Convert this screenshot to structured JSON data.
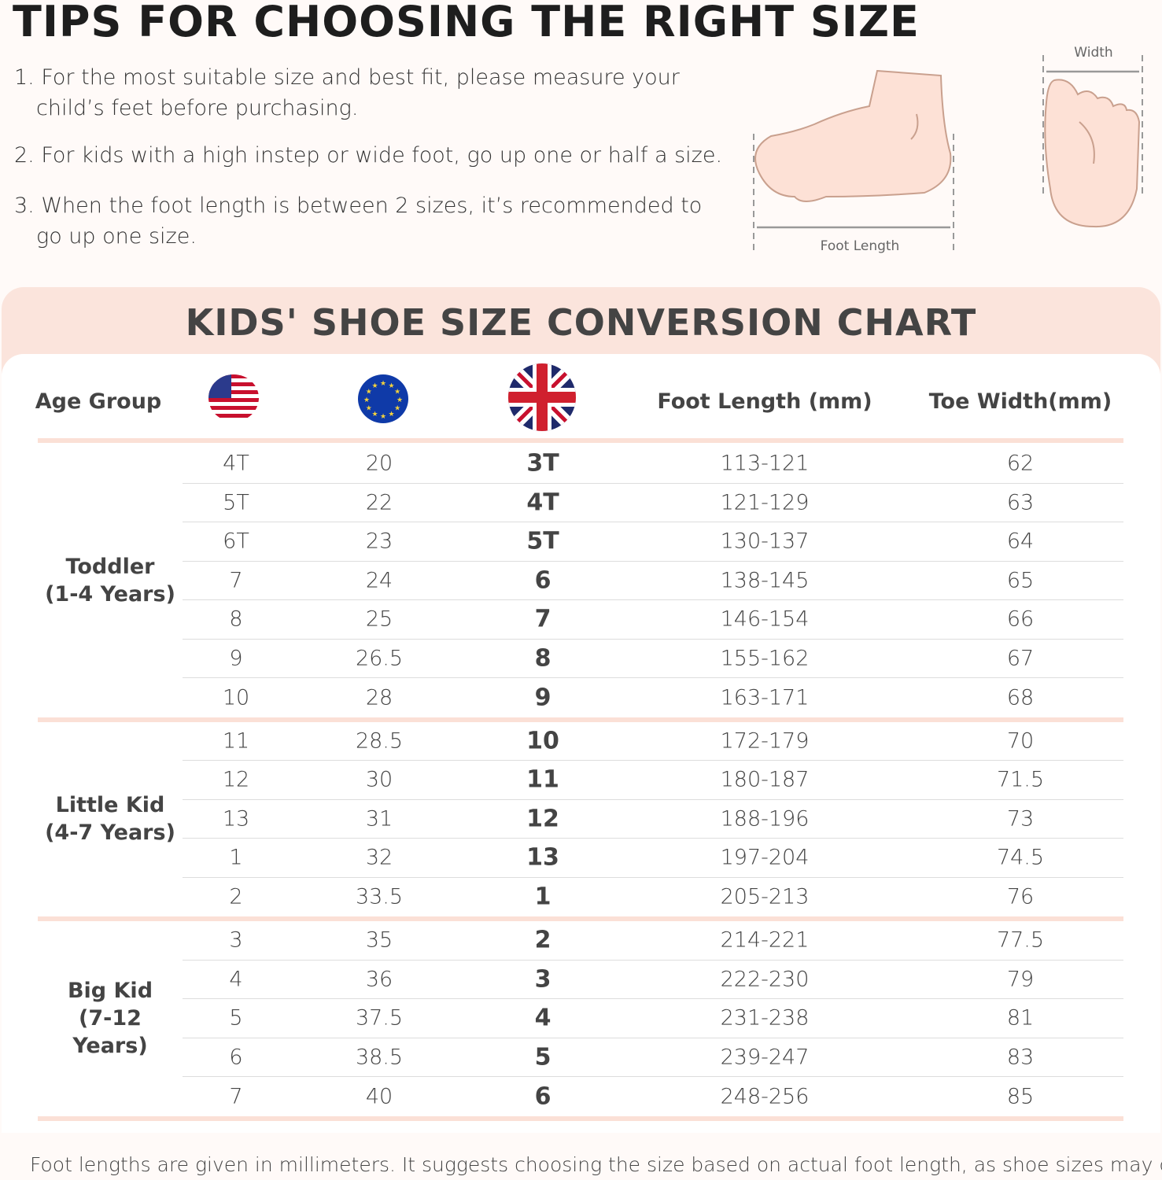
{
  "title": "TIPS FOR CHOOSING THE RIGHT SIZE",
  "tips": [
    {
      "line1": "1. For the most suitable size and best fit, please measure your",
      "line2": "child’s feet before purchasing."
    },
    {
      "line1": "2. For kids with a high instep or wide foot, go up one or half a size.",
      "line2": ""
    },
    {
      "line1": "3. When the foot length is between 2 sizes, it’s recommended to",
      "line2": "go up one size."
    }
  ],
  "illustration": {
    "length_label": "Foot  Length",
    "width_label": "Width"
  },
  "chart_title": "KIDS' SHOE SIZE CONVERSION CHART",
  "headers": {
    "age": "Age Group",
    "us": "us-flag-icon",
    "eu": "eu-flag-icon",
    "uk": "uk-flag-icon",
    "foot_length": "Foot Length (mm)",
    "toe_width": "Toe Width(mm)"
  },
  "colors": {
    "accent": "#fbe4dc",
    "text": "#444444"
  },
  "groups": [
    {
      "line1": "Toddler",
      "line2": "(1-4 Years)",
      "rows": [
        [
          "4T",
          "20",
          "3T",
          "113-121",
          "62"
        ],
        [
          "5T",
          "22",
          "4T",
          "121-129",
          "63"
        ],
        [
          "6T",
          "23",
          "5T",
          "130-137",
          "64"
        ],
        [
          "7",
          "24",
          "6",
          "138-145",
          "65"
        ],
        [
          "8",
          "25",
          "7",
          "146-154",
          "66"
        ],
        [
          "9",
          "26.5",
          "8",
          "155-162",
          "67"
        ],
        [
          "10",
          "28",
          "9",
          "163-171",
          "68"
        ]
      ]
    },
    {
      "line1": "Little Kid",
      "line2": "(4-7 Years)",
      "rows": [
        [
          "11",
          "28.5",
          "10",
          "172-179",
          "70"
        ],
        [
          "12",
          "30",
          "11",
          "180-187",
          "71.5"
        ],
        [
          "13",
          "31",
          "12",
          "188-196",
          "73"
        ],
        [
          "1",
          "32",
          "13",
          "197-204",
          "74.5"
        ],
        [
          "2",
          "33.5",
          "1",
          "205-213",
          "76"
        ]
      ]
    },
    {
      "line1": "Big Kid",
      "line2": "(7-12 Years)",
      "rows": [
        [
          "3",
          "35",
          "2",
          "214-221",
          "77.5"
        ],
        [
          "4",
          "36",
          "3",
          "222-230",
          "79"
        ],
        [
          "5",
          "37.5",
          "4",
          "231-238",
          "81"
        ],
        [
          "6",
          "38.5",
          "5",
          "239-247",
          "83"
        ],
        [
          "7",
          "40",
          "6",
          "248-256",
          "85"
        ]
      ]
    }
  ],
  "footnote": "Foot lengths are given in millimeters. It suggests choosing the size based on actual foot length, as shoe sizes may differ."
}
